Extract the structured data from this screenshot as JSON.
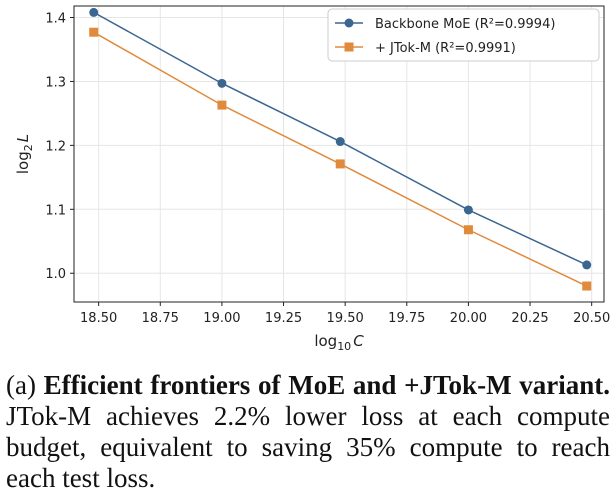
{
  "chart_data": {
    "type": "line",
    "xlabel_base": "log",
    "xlabel_sub": "10",
    "xlabel_var": "C",
    "ylabel_base": "log",
    "ylabel_sub": "2",
    "ylabel_var": "L",
    "xlim": [
      18.4,
      20.55
    ],
    "ylim": [
      0.955,
      1.418
    ],
    "xticks": [
      "18.50",
      "18.75",
      "19.00",
      "19.25",
      "19.50",
      "19.75",
      "20.00",
      "20.25",
      "20.50"
    ],
    "xtick_values": [
      18.5,
      18.75,
      19.0,
      19.25,
      19.5,
      19.75,
      20.0,
      20.25,
      20.5
    ],
    "yticks": [
      "1.0",
      "1.1",
      "1.2",
      "1.3",
      "1.4"
    ],
    "ytick_values": [
      1.0,
      1.1,
      1.2,
      1.3,
      1.4
    ],
    "grid": true,
    "legend_position": "top-right",
    "series": [
      {
        "name": "Backbone MoE  (R²=0.9994)",
        "marker": "circle",
        "color": "#3a6690",
        "x": [
          18.48,
          19.0,
          19.48,
          20.0,
          20.48
        ],
        "y": [
          1.408,
          1.297,
          1.206,
          1.099,
          1.013
        ]
      },
      {
        "name": "+ JTok-M  (R²=0.9991)",
        "marker": "square",
        "color": "#e08a3c",
        "x": [
          18.48,
          19.0,
          19.48,
          20.0,
          20.48
        ],
        "y": [
          1.377,
          1.263,
          1.171,
          1.068,
          0.98
        ]
      }
    ]
  },
  "caption": {
    "label": "(a)",
    "bold": "Efficient frontiers of MoE and +JTok-M variant.",
    "text": "JTok-M achieves 2.2% lower loss at each compute budget, equivalent to saving 35% compute to reach each test loss."
  }
}
